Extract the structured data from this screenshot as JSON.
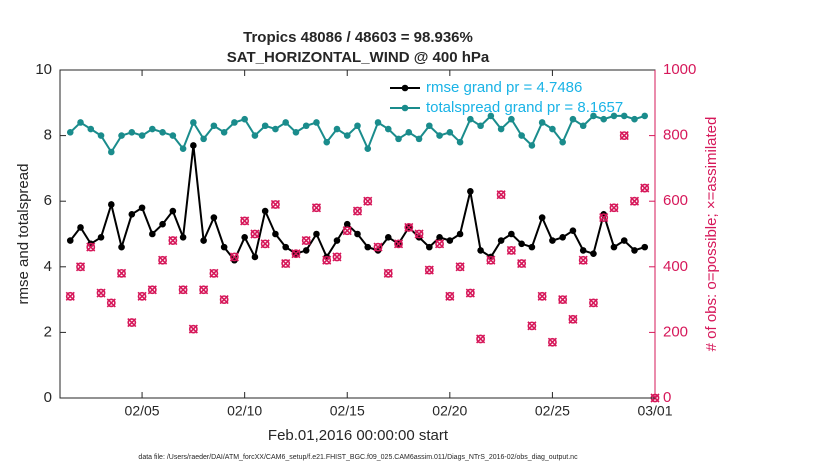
{
  "chart_data": {
    "type": "line",
    "title": "Tropics 48086 / 48603 = 98.936%",
    "subtitle": "SAT_HORIZONTAL_WIND @ 400 hPa",
    "x_label": "Feb.01,2016 00:00:00 start",
    "y_label": "rmse and totalspread",
    "y2_label": "# of obs: o=possible; ×=assimilated",
    "footnote": "data file: /Users/raeder/DAI/ATM_forcXX/CAM6_setup/f.e21.FHIST_BGC.f09_025.CAM6assim.011/Diags_NTrS_2016-02/obs_diag_output.nc",
    "x": [
      1.5,
      2,
      2.5,
      3,
      3.5,
      4,
      4.5,
      5,
      5.5,
      6,
      6.5,
      7,
      7.5,
      8,
      8.5,
      9,
      9.5,
      10,
      10.5,
      11,
      11.5,
      12,
      12.5,
      13,
      13.5,
      14,
      14.5,
      15,
      15.5,
      16,
      16.5,
      17,
      17.5,
      18,
      18.5,
      19,
      19.5,
      20,
      20.5,
      21,
      21.5,
      22,
      22.5,
      23,
      23.5,
      24,
      24.5,
      25,
      25.5,
      26,
      26.5,
      27,
      27.5,
      28,
      28.5,
      29,
      29.5,
      30
    ],
    "xlim": [
      1,
      30
    ],
    "xticks": [
      {
        "value": 5,
        "label": "02/05"
      },
      {
        "value": 10,
        "label": "02/10"
      },
      {
        "value": 15,
        "label": "02/15"
      },
      {
        "value": 20,
        "label": "02/20"
      },
      {
        "value": 25,
        "label": "02/25"
      },
      {
        "value": 30,
        "label": "03/01"
      }
    ],
    "ylim": [
      0,
      10
    ],
    "yticks": [
      0,
      2,
      4,
      6,
      8,
      10
    ],
    "y2lim": [
      0,
      1000
    ],
    "y2ticks": [
      0,
      200,
      400,
      600,
      800,
      1000
    ],
    "legend": "upper right",
    "series": [
      {
        "name": "rmse grand pr = 4.7486",
        "color": "#000000",
        "marker": "dot",
        "values": [
          4.8,
          5.2,
          4.7,
          4.9,
          5.9,
          4.6,
          5.6,
          5.8,
          5.0,
          5.3,
          5.7,
          4.9,
          7.7,
          4.8,
          5.5,
          4.6,
          4.2,
          4.9,
          4.3,
          5.7,
          5.0,
          4.6,
          4.4,
          4.5,
          5.0,
          4.3,
          4.8,
          5.3,
          5.0,
          4.6,
          4.5,
          4.9,
          4.7,
          5.2,
          4.9,
          4.6,
          4.9,
          4.8,
          5.0,
          6.3,
          4.5,
          4.3,
          4.8,
          5.0,
          4.7,
          4.6,
          5.5,
          4.8,
          4.9,
          5.1,
          4.5,
          4.4,
          5.6,
          4.6,
          4.8,
          4.5,
          4.6,
          null
        ]
      },
      {
        "name": "totalspread grand pr = 8.1657",
        "color": "#1a8c8c",
        "marker": "dot",
        "values": [
          8.1,
          8.4,
          8.2,
          8.0,
          7.5,
          8.0,
          8.1,
          8.0,
          8.2,
          8.1,
          8.0,
          7.6,
          8.4,
          7.9,
          8.3,
          8.1,
          8.4,
          8.5,
          8.0,
          8.3,
          8.2,
          8.4,
          8.1,
          8.3,
          8.4,
          7.8,
          8.2,
          8.0,
          8.3,
          7.6,
          8.4,
          8.2,
          7.9,
          8.1,
          7.9,
          8.3,
          8.0,
          8.1,
          7.8,
          8.5,
          8.3,
          8.6,
          8.2,
          8.5,
          8.0,
          7.7,
          8.4,
          8.2,
          7.8,
          8.5,
          8.3,
          8.6,
          8.5,
          8.6,
          8.6,
          8.5,
          8.6,
          null
        ]
      },
      {
        "axis": "y2",
        "color": "#d6185a",
        "marker": "circle-cross",
        "line": false,
        "values": [
          310,
          400,
          460,
          320,
          290,
          380,
          230,
          310,
          330,
          420,
          480,
          330,
          210,
          330,
          380,
          300,
          430,
          540,
          500,
          470,
          590,
          410,
          440,
          480,
          580,
          420,
          430,
          510,
          570,
          600,
          460,
          380,
          470,
          520,
          500,
          390,
          470,
          310,
          400,
          320,
          180,
          420,
          620,
          450,
          410,
          220,
          310,
          170,
          300,
          240,
          420,
          290,
          550,
          580,
          800,
          600,
          640,
          0
        ]
      }
    ],
    "legend_text_color": "#19b3e6"
  }
}
